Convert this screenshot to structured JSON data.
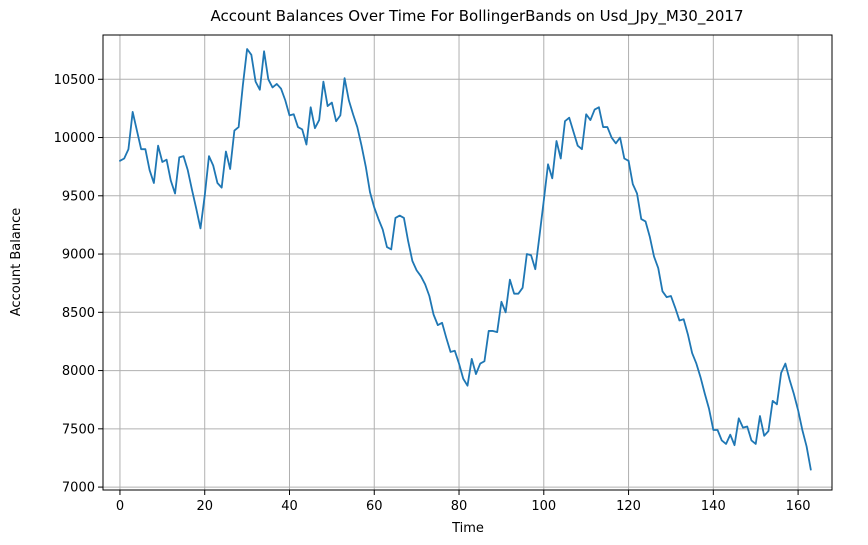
{
  "chart_data": {
    "type": "line",
    "title": "Account Balances Over Time For BollingerBands on Usd_Jpy_M30_2017",
    "xlabel": "Time",
    "ylabel": "Account Balance",
    "xlim": [
      -4,
      168
    ],
    "ylim": [
      6975,
      10880
    ],
    "xticks": [
      0,
      20,
      40,
      60,
      80,
      100,
      120,
      140,
      160
    ],
    "yticks": [
      7000,
      7500,
      8000,
      8500,
      9000,
      9500,
      10000,
      10500
    ],
    "grid": true,
    "legend": "none",
    "series": [
      {
        "color": "#1f77b4",
        "x": [
          0,
          1,
          2,
          3,
          4,
          5,
          6,
          7,
          8,
          9,
          10,
          11,
          12,
          13,
          14,
          15,
          16,
          17,
          18,
          19,
          20,
          21,
          22,
          23,
          24,
          25,
          26,
          27,
          28,
          29,
          30,
          31,
          32,
          33,
          34,
          35,
          36,
          37,
          38,
          39,
          40,
          41,
          42,
          43,
          44,
          45,
          46,
          47,
          48,
          49,
          50,
          51,
          52,
          53,
          54,
          55,
          56,
          57,
          58,
          59,
          60,
          61,
          62,
          63,
          64,
          65,
          66,
          67,
          68,
          69,
          70,
          71,
          72,
          73,
          74,
          75,
          76,
          77,
          78,
          79,
          80,
          81,
          82,
          83,
          84,
          85,
          86,
          87,
          88,
          89,
          90,
          91,
          92,
          93,
          94,
          95,
          96,
          97,
          98,
          99,
          100,
          101,
          102,
          103,
          104,
          105,
          106,
          107,
          108,
          109,
          110,
          111,
          112,
          113,
          114,
          115,
          116,
          117,
          118,
          119,
          120,
          121,
          122,
          123,
          124,
          125,
          126,
          127,
          128,
          129,
          130,
          131,
          132,
          133,
          134,
          135,
          136,
          137,
          138,
          139,
          140,
          141,
          142,
          143,
          144,
          145,
          146,
          147,
          148,
          149,
          150,
          151,
          152,
          153,
          154,
          155,
          156,
          157,
          158,
          159,
          160,
          161,
          162,
          163
        ],
        "values": [
          9800,
          9820,
          9900,
          10220,
          10060,
          9900,
          9900,
          9720,
          9610,
          9930,
          9790,
          9810,
          9630,
          9520,
          9830,
          9840,
          9720,
          9550,
          9390,
          9220,
          9500,
          9840,
          9760,
          9610,
          9570,
          9880,
          9730,
          10060,
          10090,
          10450,
          10760,
          10710,
          10480,
          10410,
          10740,
          10500,
          10430,
          10460,
          10420,
          10320,
          10190,
          10200,
          10090,
          10070,
          9940,
          10260,
          10080,
          10150,
          10480,
          10270,
          10300,
          10140,
          10190,
          10510,
          10320,
          10200,
          10090,
          9930,
          9750,
          9530,
          9400,
          9300,
          9210,
          9060,
          9040,
          9310,
          9330,
          9310,
          9110,
          8940,
          8860,
          8810,
          8740,
          8640,
          8480,
          8390,
          8410,
          8280,
          8160,
          8170,
          8060,
          7930,
          7870,
          8100,
          7970,
          8060,
          8080,
          8340,
          8340,
          8330,
          8590,
          8500,
          8780,
          8660,
          8660,
          8710,
          9000,
          8990,
          8870,
          9160,
          9460,
          9770,
          9650,
          9970,
          9820,
          10140,
          10170,
          10050,
          9930,
          9900,
          10200,
          10150,
          10240,
          10260,
          10090,
          10090,
          10000,
          9950,
          10000,
          9820,
          9800,
          9600,
          9520,
          9300,
          9280,
          9150,
          8980,
          8880,
          8680,
          8630,
          8640,
          8540,
          8430,
          8440,
          8310,
          8150,
          8060,
          7940,
          7800,
          7670,
          7490,
          7490,
          7400,
          7370,
          7450,
          7360,
          7590,
          7510,
          7520,
          7400,
          7370,
          7610,
          7440,
          7480,
          7740,
          7710,
          7980,
          8060,
          7920,
          7800,
          7660,
          7490,
          7350,
          7150
        ]
      }
    ]
  }
}
